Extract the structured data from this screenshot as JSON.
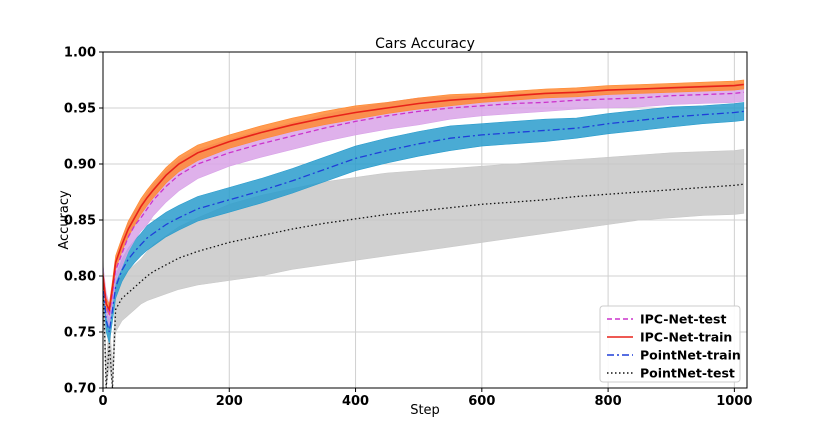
{
  "chart_data": {
    "type": "line",
    "title": "Cars Accuracy",
    "xlabel": "Step",
    "ylabel": "Accuracy",
    "xlim": [
      0,
      1020
    ],
    "ylim": [
      0.7,
      1.0
    ],
    "xticks": [
      0,
      200,
      400,
      600,
      800,
      1000
    ],
    "yticks": [
      0.7,
      0.75,
      0.8,
      0.85,
      0.9,
      0.95,
      1.0
    ],
    "xtick_labels": [
      "0",
      "200",
      "400",
      "600",
      "800",
      "1000"
    ],
    "ytick_labels": [
      "0.70",
      "0.75",
      "0.80",
      "0.85",
      "0.90",
      "0.95",
      "1.00"
    ],
    "grid": true,
    "legend_position": "bottom-right",
    "series": [
      {
        "name": "IPC-Net-test",
        "line_color": "#cc33cc",
        "fill_color": "#d9a3e8",
        "dash": "dashed",
        "x": [
          0,
          5,
          10,
          15,
          20,
          30,
          40,
          50,
          60,
          70,
          80,
          100,
          120,
          150,
          200,
          250,
          300,
          350,
          400,
          450,
          500,
          550,
          600,
          650,
          700,
          750,
          800,
          850,
          900,
          950,
          1000,
          1015
        ],
        "y": [
          0.8,
          0.775,
          0.765,
          0.785,
          0.805,
          0.82,
          0.835,
          0.845,
          0.852,
          0.86,
          0.868,
          0.88,
          0.89,
          0.9,
          0.91,
          0.918,
          0.925,
          0.932,
          0.938,
          0.943,
          0.947,
          0.95,
          0.952,
          0.954,
          0.955,
          0.957,
          0.958,
          0.959,
          0.961,
          0.962,
          0.963,
          0.964
        ],
        "lower": [
          0.79,
          0.765,
          0.755,
          0.775,
          0.795,
          0.808,
          0.822,
          0.832,
          0.84,
          0.846,
          0.854,
          0.866,
          0.876,
          0.887,
          0.898,
          0.906,
          0.913,
          0.92,
          0.926,
          0.931,
          0.935,
          0.94,
          0.943,
          0.945,
          0.947,
          0.949,
          0.95,
          0.951,
          0.953,
          0.954,
          0.955,
          0.956
        ],
        "upper": [
          0.81,
          0.785,
          0.775,
          0.795,
          0.815,
          0.832,
          0.848,
          0.858,
          0.864,
          0.874,
          0.882,
          0.894,
          0.904,
          0.913,
          0.922,
          0.93,
          0.937,
          0.944,
          0.95,
          0.955,
          0.959,
          0.96,
          0.961,
          0.963,
          0.963,
          0.965,
          0.966,
          0.967,
          0.969,
          0.97,
          0.971,
          0.972
        ]
      },
      {
        "name": "IPC-Net-train",
        "line_color": "#e8221a",
        "fill_color": "#ff8a33",
        "dash": "solid",
        "x": [
          0,
          5,
          10,
          15,
          20,
          30,
          40,
          50,
          60,
          70,
          80,
          100,
          120,
          150,
          200,
          250,
          300,
          350,
          400,
          450,
          500,
          550,
          600,
          650,
          700,
          750,
          800,
          850,
          900,
          950,
          1000,
          1015
        ],
        "y": [
          0.8,
          0.775,
          0.77,
          0.79,
          0.812,
          0.828,
          0.842,
          0.852,
          0.862,
          0.87,
          0.877,
          0.89,
          0.9,
          0.91,
          0.92,
          0.928,
          0.935,
          0.941,
          0.946,
          0.95,
          0.954,
          0.957,
          0.959,
          0.961,
          0.963,
          0.964,
          0.966,
          0.967,
          0.968,
          0.969,
          0.97,
          0.971
        ],
        "lower": [
          0.795,
          0.77,
          0.765,
          0.784,
          0.806,
          0.822,
          0.835,
          0.845,
          0.855,
          0.863,
          0.87,
          0.883,
          0.893,
          0.903,
          0.914,
          0.922,
          0.929,
          0.935,
          0.94,
          0.945,
          0.949,
          0.952,
          0.955,
          0.957,
          0.959,
          0.96,
          0.962,
          0.963,
          0.964,
          0.965,
          0.966,
          0.967
        ],
        "upper": [
          0.805,
          0.78,
          0.775,
          0.796,
          0.818,
          0.834,
          0.849,
          0.859,
          0.869,
          0.877,
          0.884,
          0.897,
          0.907,
          0.917,
          0.926,
          0.934,
          0.941,
          0.947,
          0.952,
          0.955,
          0.959,
          0.962,
          0.963,
          0.965,
          0.967,
          0.968,
          0.97,
          0.971,
          0.972,
          0.973,
          0.974,
          0.975
        ]
      },
      {
        "name": "PointNet-train",
        "line_color": "#1f3fd9",
        "fill_color": "#2a9ccc",
        "dash": "dashdot",
        "x": [
          0,
          5,
          10,
          15,
          20,
          30,
          40,
          50,
          60,
          70,
          80,
          100,
          120,
          150,
          200,
          250,
          300,
          350,
          400,
          450,
          500,
          550,
          600,
          650,
          700,
          750,
          800,
          850,
          900,
          950,
          1000,
          1015
        ],
        "y": [
          0.8,
          0.76,
          0.75,
          0.77,
          0.79,
          0.805,
          0.815,
          0.822,
          0.828,
          0.834,
          0.838,
          0.846,
          0.852,
          0.86,
          0.868,
          0.876,
          0.885,
          0.895,
          0.905,
          0.912,
          0.918,
          0.923,
          0.926,
          0.928,
          0.93,
          0.932,
          0.936,
          0.939,
          0.942,
          0.944,
          0.946,
          0.947
        ],
        "lower": [
          0.79,
          0.75,
          0.74,
          0.76,
          0.78,
          0.795,
          0.805,
          0.812,
          0.818,
          0.823,
          0.827,
          0.835,
          0.841,
          0.849,
          0.857,
          0.865,
          0.874,
          0.884,
          0.894,
          0.901,
          0.907,
          0.912,
          0.916,
          0.918,
          0.92,
          0.923,
          0.927,
          0.93,
          0.933,
          0.936,
          0.938,
          0.939
        ],
        "upper": [
          0.81,
          0.77,
          0.76,
          0.78,
          0.8,
          0.815,
          0.825,
          0.832,
          0.838,
          0.845,
          0.849,
          0.857,
          0.863,
          0.871,
          0.879,
          0.887,
          0.896,
          0.906,
          0.916,
          0.923,
          0.929,
          0.934,
          0.936,
          0.938,
          0.94,
          0.941,
          0.945,
          0.948,
          0.951,
          0.952,
          0.954,
          0.955
        ]
      },
      {
        "name": "PointNet-test",
        "line_color": "#111111",
        "fill_color": "#c8c8c8",
        "dash": "dotted",
        "x": [
          0,
          5,
          10,
          15,
          20,
          30,
          40,
          50,
          60,
          70,
          80,
          100,
          120,
          150,
          200,
          250,
          300,
          350,
          400,
          450,
          500,
          550,
          600,
          650,
          700,
          750,
          800,
          850,
          900,
          950,
          1000,
          1015
        ],
        "y": [
          0.8,
          0.7,
          0.74,
          0.7,
          0.77,
          0.78,
          0.785,
          0.79,
          0.795,
          0.8,
          0.804,
          0.81,
          0.816,
          0.822,
          0.83,
          0.836,
          0.842,
          0.847,
          0.851,
          0.855,
          0.858,
          0.861,
          0.864,
          0.866,
          0.868,
          0.871,
          0.873,
          0.875,
          0.877,
          0.879,
          0.881,
          0.882
        ],
        "lower": [
          0.78,
          0.7,
          0.72,
          0.7,
          0.75,
          0.76,
          0.765,
          0.77,
          0.775,
          0.778,
          0.78,
          0.784,
          0.788,
          0.792,
          0.796,
          0.8,
          0.806,
          0.81,
          0.814,
          0.818,
          0.822,
          0.826,
          0.83,
          0.834,
          0.838,
          0.842,
          0.846,
          0.85,
          0.852,
          0.854,
          0.855,
          0.856
        ],
        "upper": [
          0.82,
          0.72,
          0.76,
          0.72,
          0.79,
          0.8,
          0.805,
          0.81,
          0.815,
          0.822,
          0.828,
          0.836,
          0.844,
          0.852,
          0.864,
          0.872,
          0.878,
          0.884,
          0.888,
          0.892,
          0.894,
          0.896,
          0.898,
          0.9,
          0.902,
          0.904,
          0.906,
          0.908,
          0.91,
          0.911,
          0.912,
          0.913
        ]
      }
    ]
  }
}
